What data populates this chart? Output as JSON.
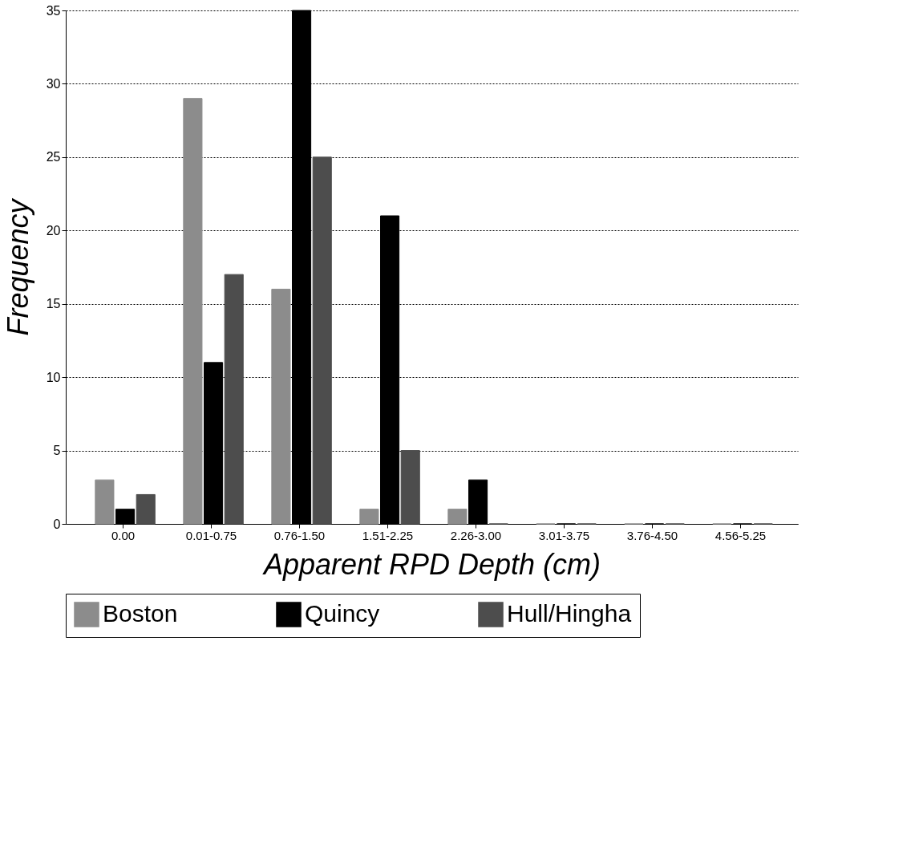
{
  "chart_data": {
    "type": "bar",
    "xlabel": "Apparent RPD Depth (cm)",
    "ylabel": "Frequency",
    "categories": [
      "0.00",
      "0.01-0.75",
      "0.76-1.50",
      "1.51-2.25",
      "2.26-3.00",
      "3.01-3.75",
      "3.76-4.50",
      "4.56-5.25"
    ],
    "series": [
      {
        "name": "Boston",
        "color": "#8c8c8c",
        "values": [
          3,
          29,
          16,
          1,
          1,
          0,
          0,
          0
        ]
      },
      {
        "name": "Quincy",
        "color": "#000000",
        "values": [
          1,
          11,
          35,
          21,
          3,
          0,
          0,
          0
        ]
      },
      {
        "name": "Hull/Hingha",
        "color": "#4d4d4d",
        "values": [
          2,
          17,
          25,
          5,
          0,
          0,
          0,
          0
        ]
      }
    ],
    "ylim": [
      0,
      35
    ],
    "yticks": [
      0,
      5,
      10,
      15,
      20,
      25,
      30,
      35
    ],
    "grid": "y",
    "legend": "bottom"
  }
}
